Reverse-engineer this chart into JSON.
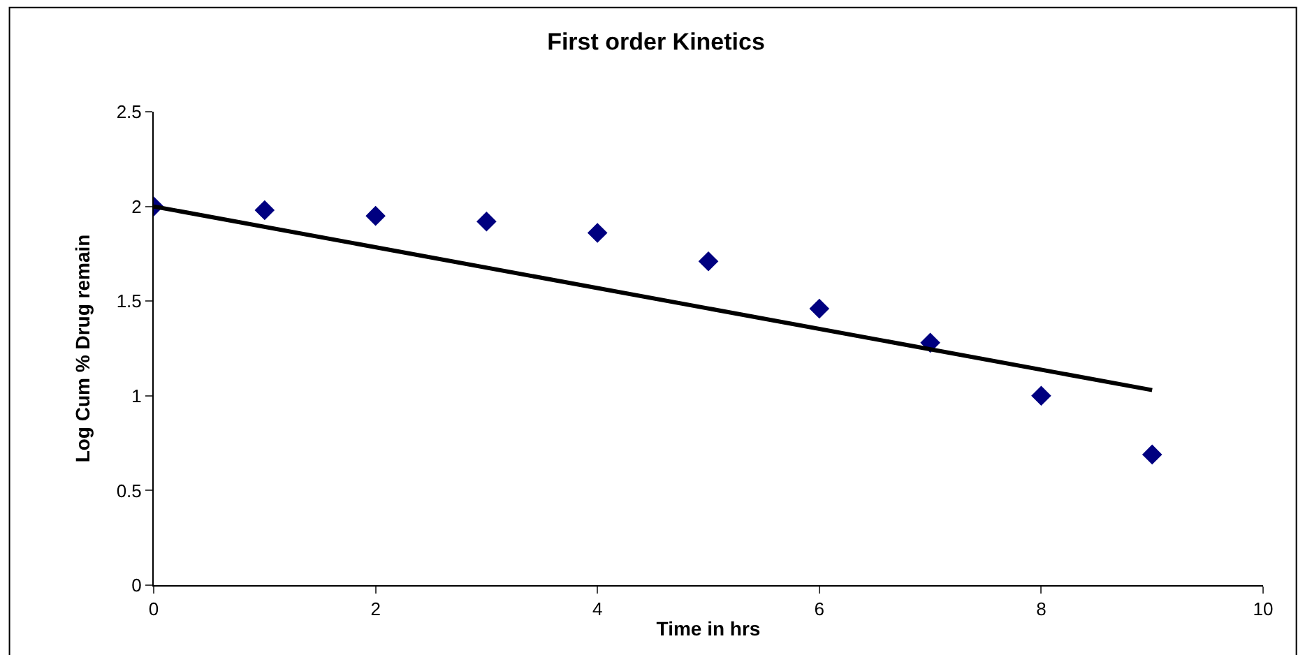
{
  "chart_data": {
    "type": "scatter",
    "title": "First order Kinetics",
    "xlabel": "Time in hrs",
    "ylabel": "Log Cum % Drug remain",
    "x": [
      0,
      1,
      2,
      3,
      4,
      5,
      6,
      7,
      8,
      9
    ],
    "series": [
      {
        "color": "#000080",
        "marker": "diamond",
        "values": [
          2.0,
          1.98,
          1.95,
          1.92,
          1.86,
          1.71,
          1.46,
          1.28,
          1.0,
          0.69
        ]
      },
      {
        "type": "line",
        "color": "#000000",
        "marker": "none",
        "x": [
          0,
          9
        ],
        "values": [
          2.0,
          1.03
        ]
      }
    ],
    "xlim": [
      0,
      10
    ],
    "xticks": [
      0,
      2,
      4,
      6,
      8,
      10
    ],
    "ylim": [
      0,
      2.5
    ],
    "yticks": [
      0,
      0.5,
      1,
      1.5,
      2,
      2.5
    ],
    "grid": false
  }
}
